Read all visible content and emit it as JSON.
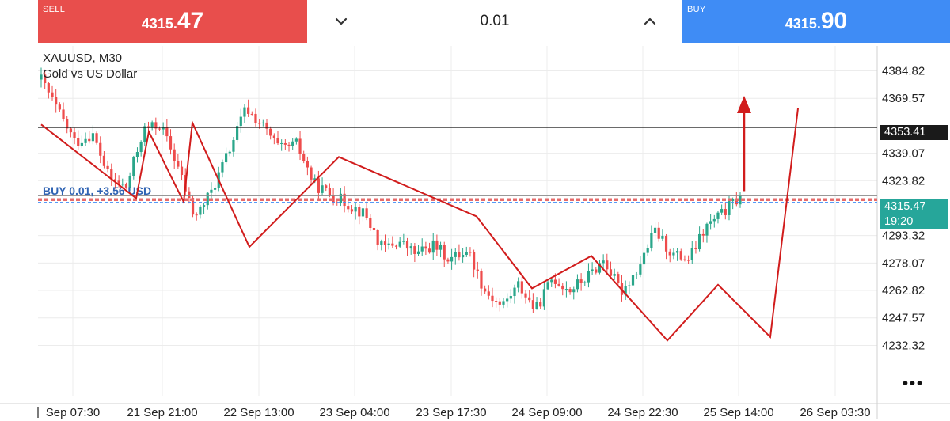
{
  "trade_bar": {
    "sell": {
      "label": "SELL",
      "price_prefix": "4315.",
      "price_big": "47"
    },
    "buy": {
      "label": "BUY",
      "price_prefix": "4315.",
      "price_big": "90"
    },
    "lot": "0.01"
  },
  "symbol": {
    "ticker_timeframe": "XAUUSD, M30",
    "description": "Gold vs US Dollar"
  },
  "position_label": "BUY 0.01,  +3.56 USD",
  "price_tags": {
    "level": "4353.41",
    "current": "4315.47",
    "countdown": "19:20"
  },
  "more_menu": "•••",
  "colors": {
    "sell": "#e84e4c",
    "buy": "#3f8cf5",
    "bull": "#2aa68a",
    "bear": "#ee4c4c",
    "drawing": "#d11c1c",
    "level_line": "#111111",
    "bid_line": "#8a8a8a",
    "position_line": "#e66b6b"
  },
  "chart_data": {
    "type": "candlestick",
    "symbol": "XAUUSD",
    "timeframe": "M30",
    "title": "XAUUSD, M30",
    "subtitle": "Gold vs US Dollar",
    "y_ticks": [
      "4384.82",
      "4369.57",
      "4339.07",
      "4323.82",
      "4293.32",
      "4278.07",
      "4262.82",
      "4247.57",
      "4232.32"
    ],
    "x_ticks": [
      "Sep 07:30",
      "21 Sep 21:00",
      "22 Sep 13:00",
      "23 Sep 04:00",
      "23 Sep 17:30",
      "24 Sep 09:00",
      "24 Sep 22:30",
      "25 Sep 14:00",
      "26 Sep 03:30"
    ],
    "grid": true,
    "horizontal_lines": [
      {
        "name": "level",
        "price": 4353.41
      },
      {
        "name": "bid",
        "price": 4315.47
      },
      {
        "name": "position",
        "price": 4313.3
      }
    ],
    "zigzag_prices": [
      4355,
      4314,
      4351,
      4312,
      4356,
      4287,
      4337,
      4304,
      4264,
      4282,
      4235,
      4266,
      4237,
      4364
    ],
    "arrow": {
      "from_price": 4318,
      "to_price": 4371,
      "direction": "up"
    },
    "waypoints": [
      4380,
      4362,
      4345,
      4350,
      4325,
      4320,
      4352,
      4355,
      4332,
      4303,
      4318,
      4340,
      4364,
      4354,
      4341,
      4344,
      4322,
      4316,
      4311,
      4305,
      4286,
      4290,
      4283,
      4288,
      4280,
      4286,
      4263,
      4254,
      4266,
      4252,
      4270,
      4263,
      4270,
      4280,
      4262,
      4275,
      4296,
      4283,
      4280,
      4298,
      4306,
      4315
    ]
  }
}
